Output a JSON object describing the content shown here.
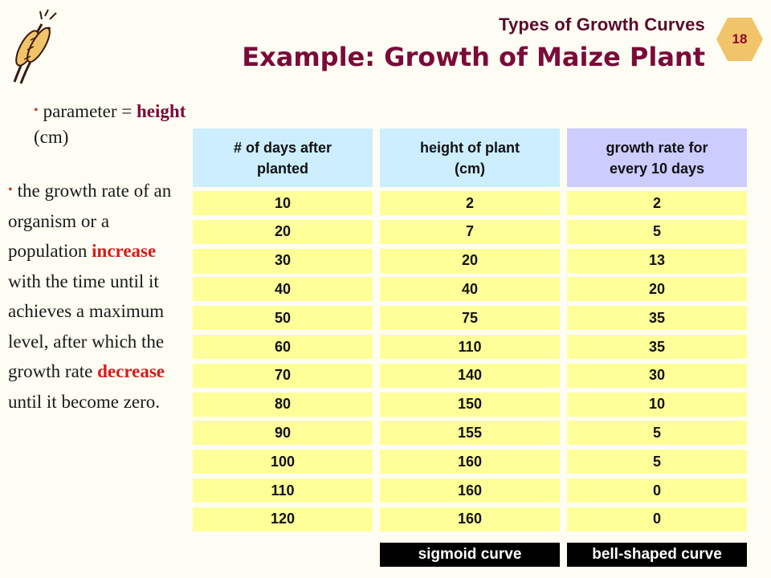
{
  "header": {
    "kicker": "Types of Growth Curves",
    "title": "Example: Growth of Maize Plant",
    "page_number": "18",
    "logo_icon": "wheat-sheaf-logo"
  },
  "left_text": {
    "p1": {
      "before": "parameter = ",
      "highlight": "height",
      "after": "(cm)"
    },
    "p2": {
      "part1": "the growth rate of an organism or a population ",
      "increase": "increase",
      "part2": " with the time until it achieves a maximum level, after which the growth rate ",
      "decrease": "decrease",
      "part3": " until it become zero."
    }
  },
  "table": {
    "headers": [
      {
        "line1": "# of days after",
        "line2": "planted"
      },
      {
        "line1": "height of plant",
        "line2": "(cm)"
      },
      {
        "line1": "growth rate for",
        "line2": "every 10 days"
      }
    ],
    "rows": [
      [
        "10",
        "2",
        "2"
      ],
      [
        "20",
        "7",
        "5"
      ],
      [
        "30",
        "20",
        "13"
      ],
      [
        "40",
        "40",
        "20"
      ],
      [
        "50",
        "75",
        "35"
      ],
      [
        "60",
        "110",
        "35"
      ],
      [
        "70",
        "140",
        "30"
      ],
      [
        "80",
        "150",
        "10"
      ],
      [
        "90",
        "155",
        "5"
      ],
      [
        "100",
        "160",
        "5"
      ],
      [
        "110",
        "160",
        "0"
      ],
      [
        "120",
        "160",
        "0"
      ]
    ],
    "footers": [
      "sigmoid curve",
      "bell-shaped curve"
    ]
  },
  "colors": {
    "title": "#7a0b38",
    "emphasis": "#d41c1c",
    "header_blue": "#cceeff",
    "header_purple": "#ccccff",
    "cell_yellow": "#ffff99",
    "badge": "#f2c46a"
  }
}
